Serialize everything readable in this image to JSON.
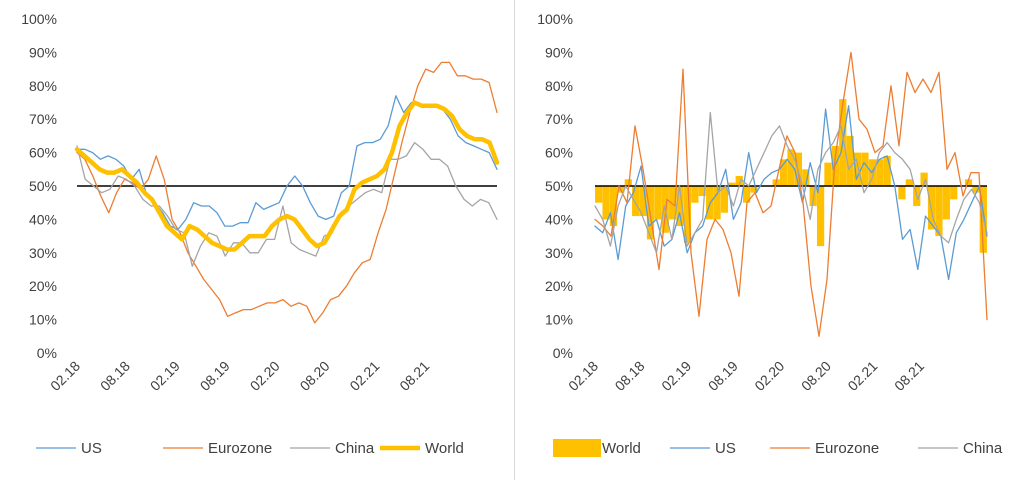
{
  "chart_data": [
    {
      "type": "line",
      "title": "",
      "xlabel": "",
      "ylabel": "",
      "ylim": [
        0,
        100
      ],
      "y_ticks": [
        "0%",
        "10%",
        "20%",
        "30%",
        "40%",
        "50%",
        "60%",
        "70%",
        "80%",
        "90%",
        "100%"
      ],
      "x_tick_labels": [
        "02.18",
        "08.18",
        "02.19",
        "08.19",
        "02.20",
        "08.20",
        "02.21",
        "08.21"
      ],
      "x_start": "2018-02",
      "reference_line": 50,
      "grid": false,
      "legend_position": "bottom",
      "series": [
        {
          "name": "US",
          "color": "#5b9bd5",
          "values": [
            61,
            61,
            60,
            58,
            59,
            58,
            56,
            52,
            55,
            47,
            45,
            42,
            38,
            37,
            40,
            45,
            44,
            44,
            42,
            38,
            38,
            39,
            39,
            45,
            43,
            44,
            45,
            50,
            53,
            50,
            45,
            41,
            40,
            41,
            48,
            50,
            62,
            63,
            63,
            64,
            68,
            77,
            72,
            75,
            74,
            74,
            74,
            73,
            70,
            65,
            63,
            62,
            61,
            60,
            55
          ]
        },
        {
          "name": "Eurozone",
          "color": "#ed7d31",
          "values": [
            60,
            58,
            53,
            47,
            42,
            48,
            52,
            51,
            49,
            52,
            59,
            52,
            40,
            36,
            30,
            26,
            22,
            19,
            16,
            11,
            12,
            13,
            13,
            14,
            15,
            15,
            16,
            14,
            15,
            14,
            9,
            12,
            16,
            17,
            20,
            24,
            27,
            28,
            36,
            43,
            53,
            63,
            72,
            80,
            85,
            84,
            87,
            87,
            83,
            83,
            82,
            82,
            81,
            72
          ]
        },
        {
          "name": "China",
          "color": "#a5a5a5",
          "values": [
            62,
            52,
            50,
            48,
            49,
            53,
            52,
            50,
            46,
            44,
            44,
            41,
            37,
            36,
            26,
            32,
            36,
            35,
            29,
            33,
            33,
            30,
            30,
            34,
            34,
            44,
            33,
            31,
            30,
            29,
            35,
            36,
            42,
            44,
            46,
            48,
            49,
            48,
            58,
            58,
            59,
            63,
            61,
            58,
            58,
            56,
            50,
            46,
            44,
            46,
            45,
            40
          ]
        },
        {
          "name": "World",
          "color": "#ffc000",
          "values": [
            61,
            59,
            57,
            55,
            54,
            54,
            55,
            53,
            51,
            48,
            46,
            42,
            38,
            36,
            34,
            38,
            37,
            35,
            33,
            32,
            31,
            31,
            33,
            35,
            35,
            35,
            38,
            40,
            41,
            40,
            37,
            34,
            32,
            33,
            37,
            41,
            43,
            49,
            51,
            52,
            53,
            55,
            60,
            68,
            72,
            75,
            74,
            74,
            74,
            73,
            71,
            67,
            65,
            64,
            64,
            63,
            57
          ]
        }
      ],
      "legend": [
        {
          "label": "US",
          "series": "US"
        },
        {
          "label": "Eurozone",
          "series": "Eurozone"
        },
        {
          "label": "China",
          "series": "China"
        },
        {
          "label": "World",
          "series": "World"
        }
      ]
    },
    {
      "type": "bar",
      "title": "",
      "xlabel": "",
      "ylabel": "",
      "ylim": [
        0,
        100
      ],
      "y_ticks": [
        "0%",
        "10%",
        "20%",
        "30%",
        "40%",
        "50%",
        "60%",
        "70%",
        "80%",
        "90%",
        "100%"
      ],
      "x_tick_labels": [
        "02.18",
        "08.18",
        "02.19",
        "08.19",
        "02.20",
        "08.20",
        "02.21",
        "08.21"
      ],
      "x_start": "2018-02",
      "reference_line": 50,
      "bar_baseline": 50,
      "grid": false,
      "legend_position": "bottom",
      "series": [
        {
          "name": "World",
          "render": "bar",
          "color": "#ffc000",
          "values": [
            45,
            40,
            38,
            48,
            52,
            41,
            41,
            34,
            40,
            36,
            40,
            38,
            33,
            45,
            47,
            40,
            40,
            42,
            51,
            53,
            45,
            48,
            50,
            50,
            52,
            58,
            61,
            60,
            55,
            44,
            32,
            57,
            62,
            76,
            65,
            60,
            60,
            58,
            58,
            59,
            50,
            46,
            52,
            44,
            54,
            37,
            35,
            40,
            46,
            50,
            52,
            48,
            30
          ]
        },
        {
          "name": "US",
          "render": "line",
          "color": "#5b9bd5",
          "values": [
            38,
            36,
            42,
            28,
            44,
            48,
            56,
            38,
            40,
            32,
            34,
            42,
            30,
            36,
            38,
            45,
            48,
            55,
            40,
            45,
            60,
            48,
            52,
            54,
            55,
            58,
            55,
            45,
            57,
            48,
            73,
            55,
            60,
            74,
            52,
            57,
            54,
            58,
            59,
            50,
            34,
            37,
            25,
            41,
            38,
            35,
            22,
            36,
            40,
            45,
            50,
            35
          ]
        },
        {
          "name": "Eurozone",
          "render": "line",
          "color": "#ed7d31",
          "values": [
            40,
            38,
            35,
            50,
            45,
            68,
            55,
            40,
            25,
            46,
            44,
            85,
            30,
            11,
            34,
            40,
            37,
            30,
            17,
            45,
            48,
            42,
            44,
            55,
            65,
            60,
            45,
            20,
            5,
            22,
            58,
            75,
            90,
            70,
            67,
            60,
            62,
            80,
            62,
            84,
            78,
            82,
            78,
            84,
            55,
            60,
            47,
            54,
            54,
            10
          ]
        },
        {
          "name": "China",
          "render": "line",
          "color": "#a5a5a5",
          "values": [
            44,
            40,
            32,
            44,
            50,
            46,
            42,
            36,
            30,
            44,
            34,
            50,
            32,
            36,
            40,
            72,
            48,
            50,
            44,
            52,
            50,
            55,
            60,
            65,
            68,
            62,
            58,
            50,
            40,
            55,
            60,
            63,
            68,
            55,
            58,
            48,
            52,
            60,
            63,
            60,
            58,
            55,
            46,
            52,
            40,
            35,
            33,
            40,
            46,
            49,
            45,
            36
          ]
        }
      ],
      "legend": [
        {
          "label": "World",
          "series": "World"
        },
        {
          "label": "US",
          "series": "US"
        },
        {
          "label": "Eurozone",
          "series": "Eurozone"
        },
        {
          "label": "China",
          "series": "China"
        }
      ]
    }
  ]
}
